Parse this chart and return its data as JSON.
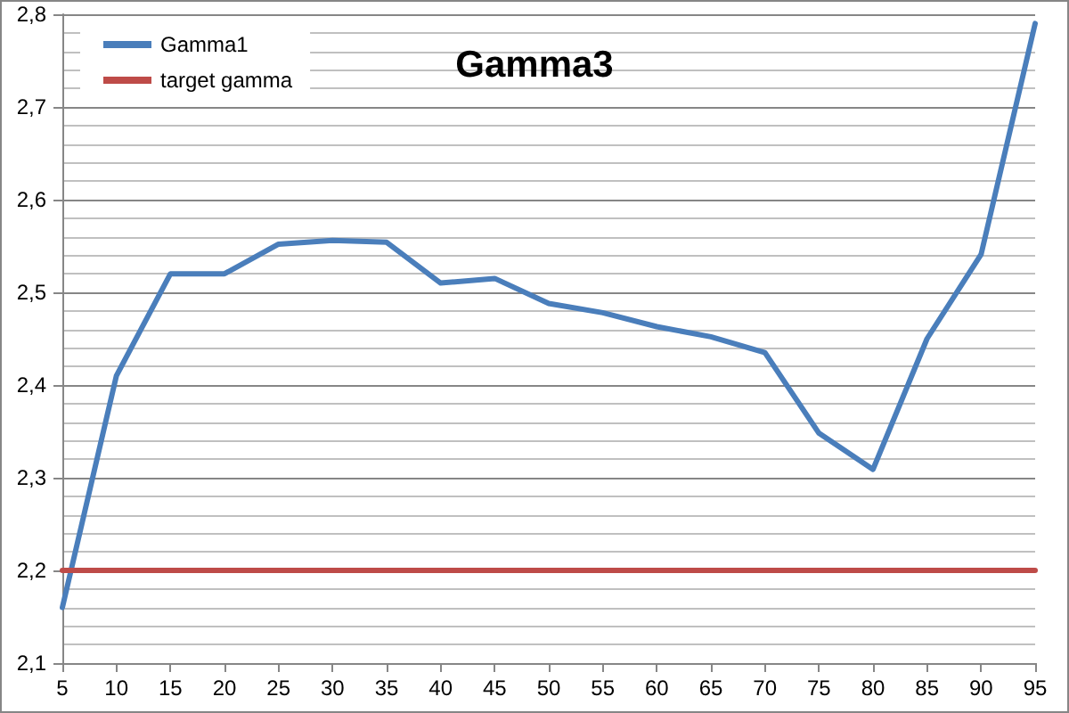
{
  "chart_data": {
    "type": "line",
    "title": "Gamma3",
    "categories": [
      "5",
      "10",
      "15",
      "20",
      "25",
      "30",
      "35",
      "40",
      "45",
      "50",
      "55",
      "60",
      "65",
      "70",
      "75",
      "80",
      "85",
      "90",
      "95"
    ],
    "series": [
      {
        "name": "Gamma1",
        "color": "#4a7ebb",
        "values": [
          2.16,
          2.41,
          2.52,
          2.52,
          2.552,
          2.556,
          2.554,
          2.51,
          2.515,
          2.488,
          2.478,
          2.463,
          2.452,
          2.435,
          2.348,
          2.309,
          2.45,
          2.541,
          2.79
        ]
      },
      {
        "name": "target gamma",
        "color": "#be4b48",
        "values": [
          2.2,
          2.2,
          2.2,
          2.2,
          2.2,
          2.2,
          2.2,
          2.2,
          2.2,
          2.2,
          2.2,
          2.2,
          2.2,
          2.2,
          2.2,
          2.2,
          2.2,
          2.2,
          2.2
        ]
      }
    ],
    "ylim": [
      2.1,
      2.8
    ],
    "yticks": [
      {
        "value": 2.1,
        "label": "2,1"
      },
      {
        "value": 2.12,
        "label": null
      },
      {
        "value": 2.14,
        "label": null
      },
      {
        "value": 2.16,
        "label": null
      },
      {
        "value": 2.18,
        "label": null
      },
      {
        "value": 2.2,
        "label": "2,2"
      },
      {
        "value": 2.22,
        "label": null
      },
      {
        "value": 2.24,
        "label": null
      },
      {
        "value": 2.26,
        "label": null
      },
      {
        "value": 2.28,
        "label": null
      },
      {
        "value": 2.3,
        "label": "2,3"
      },
      {
        "value": 2.32,
        "label": null
      },
      {
        "value": 2.34,
        "label": null
      },
      {
        "value": 2.36,
        "label": null
      },
      {
        "value": 2.38,
        "label": null
      },
      {
        "value": 2.4,
        "label": "2,4"
      },
      {
        "value": 2.42,
        "label": null
      },
      {
        "value": 2.44,
        "label": null
      },
      {
        "value": 2.46,
        "label": null
      },
      {
        "value": 2.48,
        "label": null
      },
      {
        "value": 2.5,
        "label": "2,5"
      },
      {
        "value": 2.52,
        "label": null
      },
      {
        "value": 2.54,
        "label": null
      },
      {
        "value": 2.56,
        "label": null
      },
      {
        "value": 2.58,
        "label": null
      },
      {
        "value": 2.6,
        "label": "2,6"
      },
      {
        "value": 2.62,
        "label": null
      },
      {
        "value": 2.64,
        "label": null
      },
      {
        "value": 2.66,
        "label": null
      },
      {
        "value": 2.68,
        "label": null
      },
      {
        "value": 2.7,
        "label": "2,7"
      },
      {
        "value": 2.72,
        "label": null
      },
      {
        "value": 2.74,
        "label": null
      },
      {
        "value": 2.76,
        "label": null
      },
      {
        "value": 2.78,
        "label": null
      },
      {
        "value": 2.8,
        "label": "2,8"
      }
    ],
    "grid": "y",
    "legend": "top left",
    "marker": "none",
    "line_style": "solid"
  }
}
